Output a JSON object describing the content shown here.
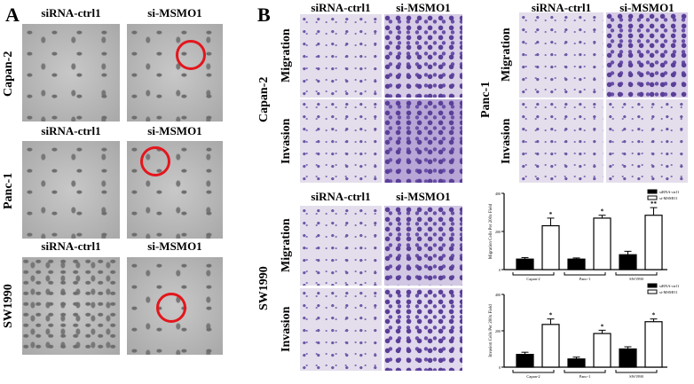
{
  "panelA": {
    "label": "A",
    "col_headers": [
      "siRNA-ctrl1",
      "si-MSMO1"
    ],
    "rows": [
      "Capan-2",
      "Panc-1",
      "SW1990"
    ]
  },
  "panelB": {
    "label": "B",
    "col_headers": [
      "siRNA-ctrl1",
      "si-MSMO1"
    ],
    "assays": [
      "Migration",
      "Invasion"
    ],
    "cell_lines": [
      "Capan-2",
      "Panc-1",
      "SW1990"
    ]
  },
  "chart_data": [
    {
      "type": "bar",
      "ylabel": "Migration Cells Per 200x Field",
      "categories": [
        "Capan-2",
        "Panc-1",
        "SW1990"
      ],
      "ylim": [
        0,
        400
      ],
      "yticks": [
        "0",
        "200",
        "400"
      ],
      "legend": "top-right",
      "series": [
        {
          "name": "siRNA-ctrl1",
          "color": "#000000",
          "values": [
            55,
            55,
            78
          ],
          "errors": [
            8,
            6,
            18
          ]
        },
        {
          "name": "si-MSMO1",
          "color": "#ffffff",
          "values": [
            230,
            270,
            285
          ],
          "errors": [
            40,
            15,
            40
          ]
        }
      ],
      "annotations": [
        "*",
        "*",
        "**"
      ]
    },
    {
      "type": "bar",
      "ylabel": "Invasion Cells Per 200x Field",
      "categories": [
        "Capan-2",
        "Panc-1",
        "SW1990"
      ],
      "ylim": [
        0,
        400
      ],
      "yticks": [
        "0",
        "200",
        "400"
      ],
      "legend": "top-right",
      "series": [
        {
          "name": "siRNA-ctrl1",
          "color": "#000000",
          "values": [
            70,
            45,
            100
          ],
          "errors": [
            12,
            10,
            12
          ]
        },
        {
          "name": "si-MSMO1",
          "color": "#ffffff",
          "values": [
            235,
            185,
            250
          ],
          "errors": [
            30,
            18,
            15
          ]
        }
      ],
      "annotations": [
        "*",
        "*",
        "*"
      ]
    }
  ]
}
